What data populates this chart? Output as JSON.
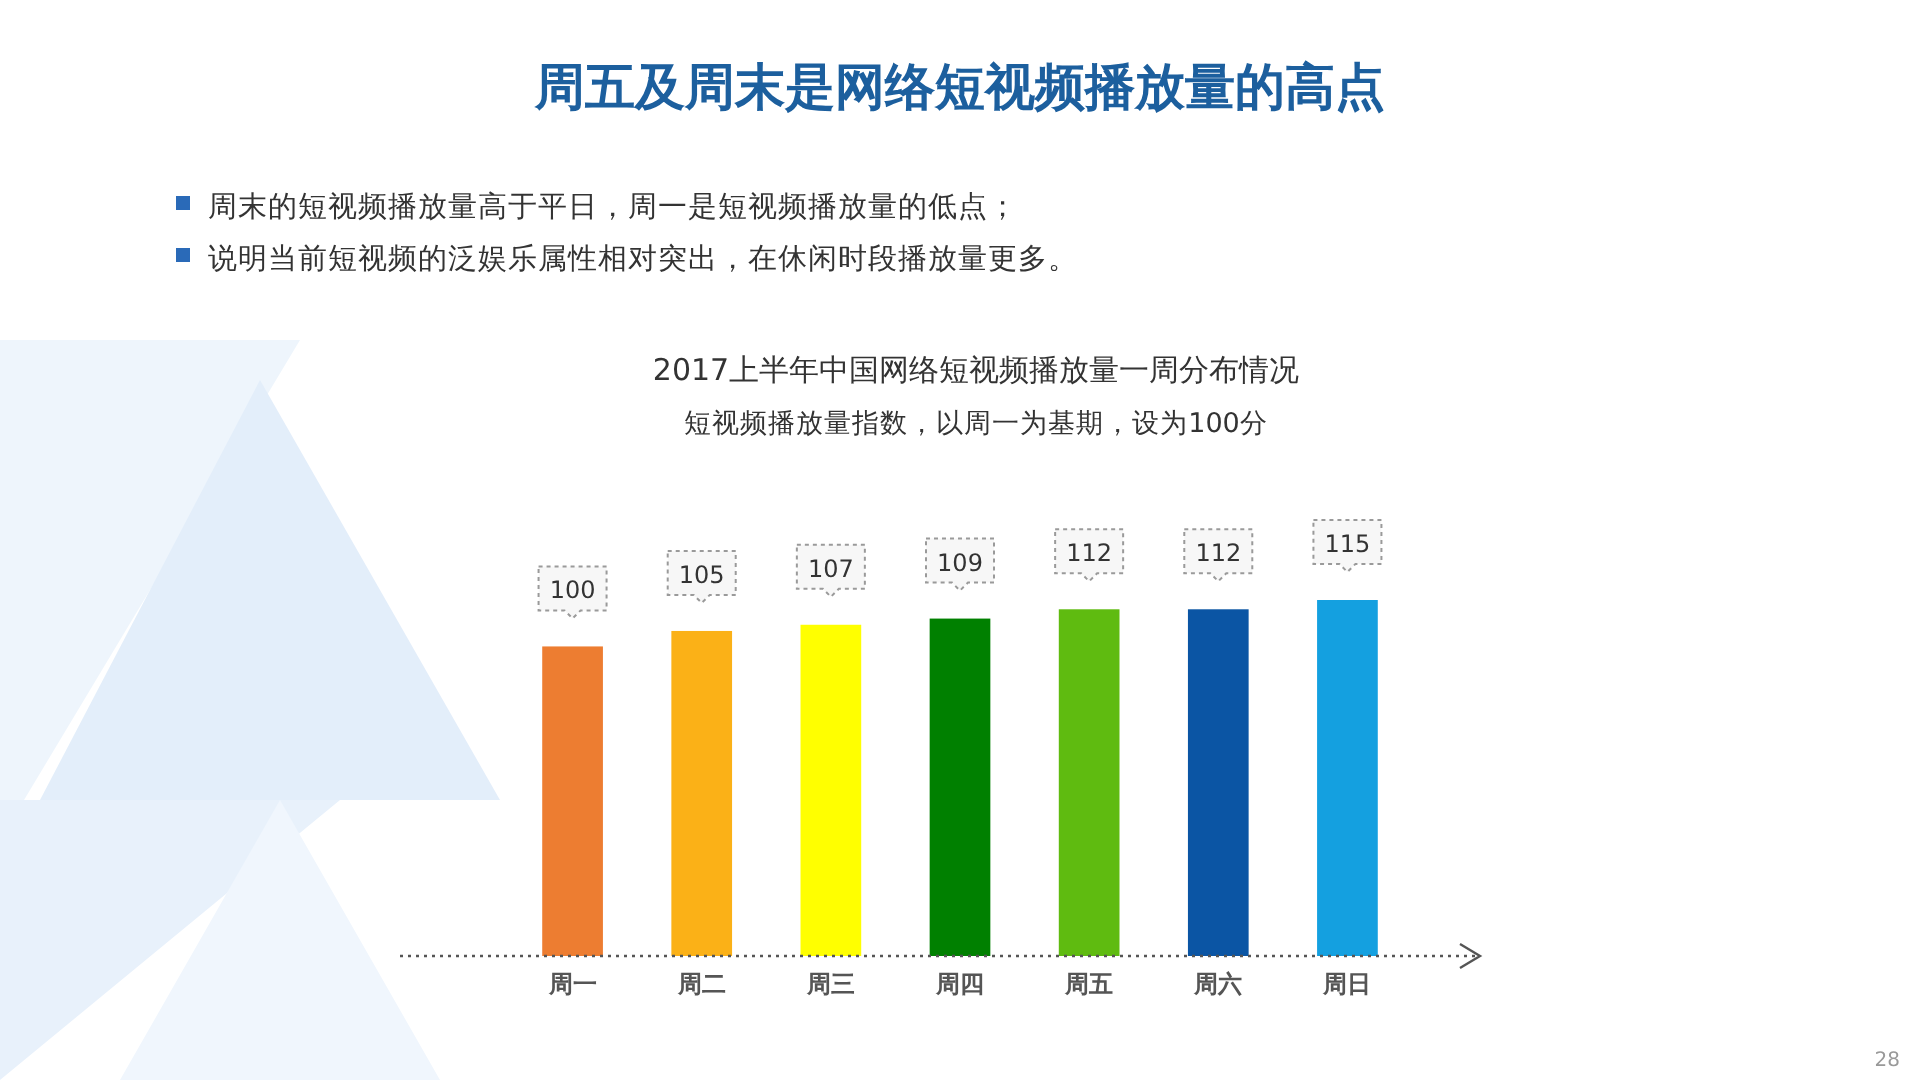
{
  "chart_data": {
    "type": "bar",
    "title": "周五及周末是网络短视频播放量的高点",
    "subtitle": "2017上半年中国网络短视频播放量一周分布情况",
    "annotations": [
      "周末的短视频播放量高于平日，周一是短视频播放量的低点；",
      "说明当前短视频的泛娱乐属性相对突出，在休闲时段播放量更多。",
      "短视频播放量指数，以周一为基期，设为100分",
      "28"
    ],
    "categories": [
      "周一",
      "周二",
      "周三",
      "周四",
      "周五",
      "周六",
      "周日"
    ],
    "values": [
      100,
      105,
      107,
      109,
      112,
      112,
      115
    ],
    "colors": [
      "#ed7d31",
      "#fbb117",
      "#ffff00",
      "#008000",
      "#5fbb10",
      "#0b55a4",
      "#14a0e0"
    ],
    "data_labels": true
  }
}
